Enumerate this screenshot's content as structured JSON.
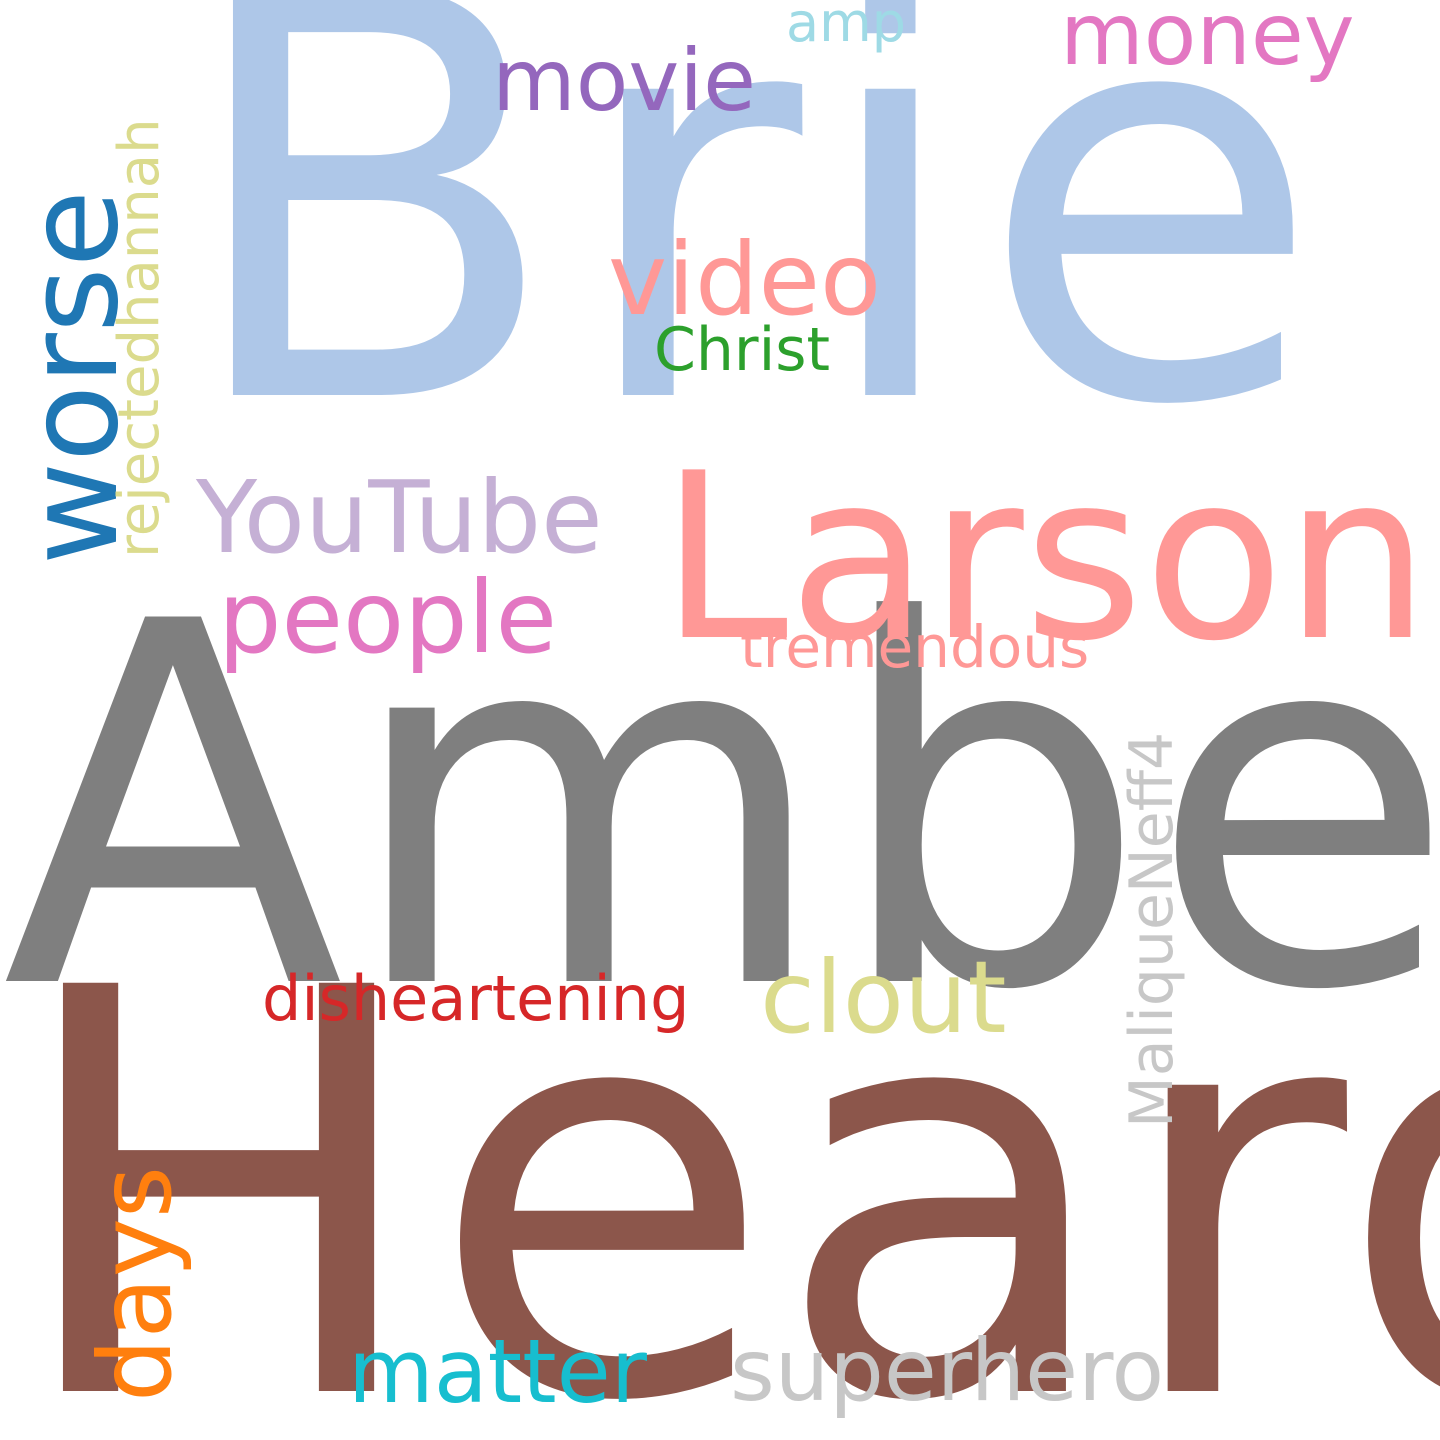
{
  "words": {
    "brie": {
      "text": "Brie",
      "color": "#aec7e8"
    },
    "amber": {
      "text": "Amber",
      "color": "#7f7f7f"
    },
    "heard": {
      "text": "Heard",
      "color": "#8c564b"
    },
    "larson": {
      "text": "Larson",
      "color": "#ff9896"
    },
    "worse": {
      "text": "worse",
      "color": "#1f77b4"
    },
    "rejected": {
      "text": "rejectedhannah",
      "color": "#dbdb8d"
    },
    "youtube": {
      "text": "YouTube",
      "color": "#c5b0d5"
    },
    "people": {
      "text": "people",
      "color": "#e377c2"
    },
    "video": {
      "text": "video",
      "color": "#ff9896"
    },
    "movie": {
      "text": "movie",
      "color": "#9467bd"
    },
    "money": {
      "text": "money",
      "color": "#e377c2"
    },
    "christ": {
      "text": "Christ",
      "color": "#2ca02c"
    },
    "amp": {
      "text": "amp",
      "color": "#9edae5"
    },
    "tremendous": {
      "text": "tremendous",
      "color": "#ff9896"
    },
    "malique": {
      "text": "MaliqueNeff4",
      "color": "#c7c7c7"
    },
    "disheartening": {
      "text": "disheartening",
      "color": "#d62728"
    },
    "clout": {
      "text": "clout",
      "color": "#dbdb8d"
    },
    "days": {
      "text": "days",
      "color": "#ff7f0e"
    },
    "matter": {
      "text": "matter",
      "color": "#17becf"
    },
    "superhero": {
      "text": "superhero",
      "color": "#c7c7c7"
    }
  }
}
